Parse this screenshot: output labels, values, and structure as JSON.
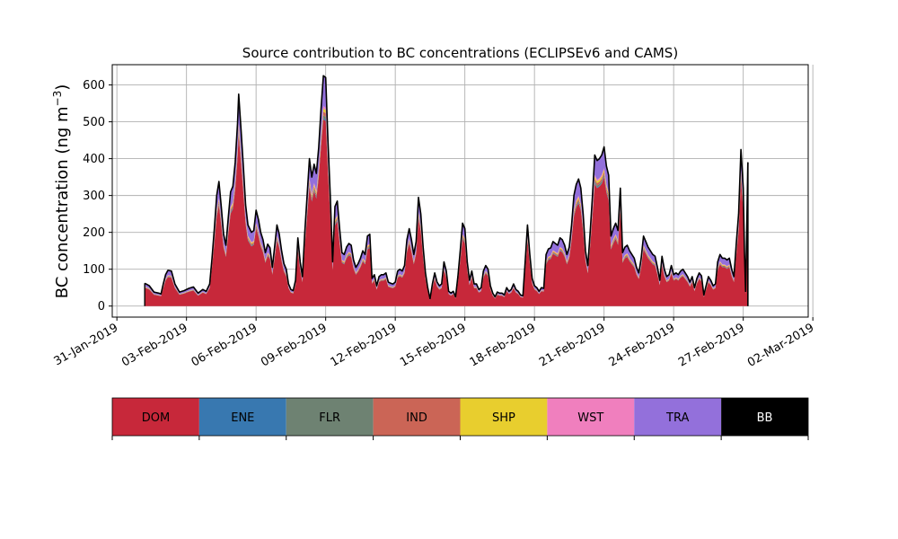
{
  "chart_data": {
    "type": "area",
    "stacked": true,
    "title": "Source contribution to BC concentrations (ECLIPSEv6 and CAMS)",
    "xlabel": "",
    "ylabel_main": "BC concentration (ng m",
    "ylabel_exp": "−3",
    "ylabel_close": ")",
    "ylim": [
      -30,
      655
    ],
    "yticks": [
      0,
      100,
      200,
      300,
      400,
      500,
      600
    ],
    "xlim_day": [
      -0.2,
      29.8
    ],
    "xticks": [
      {
        "day": 0,
        "label": "31-Jan-2019"
      },
      {
        "day": 3,
        "label": "03-Feb-2019"
      },
      {
        "day": 6,
        "label": "06-Feb-2019"
      },
      {
        "day": 9,
        "label": "09-Feb-2019"
      },
      {
        "day": 12,
        "label": "12-Feb-2019"
      },
      {
        "day": 15,
        "label": "15-Feb-2019"
      },
      {
        "day": 18,
        "label": "18-Feb-2019"
      },
      {
        "day": 21,
        "label": "21-Feb-2019"
      },
      {
        "day": 24,
        "label": "24-Feb-2019"
      },
      {
        "day": 27,
        "label": "27-Feb-2019"
      },
      {
        "day": 30,
        "label": "02-Mar-2019"
      }
    ],
    "grid": true,
    "total_keyframes": [
      [
        1.2,
        62
      ],
      [
        1.4,
        55
      ],
      [
        1.6,
        38
      ],
      [
        1.8,
        35
      ],
      [
        1.9,
        33
      ],
      [
        2.0,
        60
      ],
      [
        2.1,
        85
      ],
      [
        2.2,
        97
      ],
      [
        2.35,
        95
      ],
      [
        2.5,
        60
      ],
      [
        2.7,
        38
      ],
      [
        2.9,
        42
      ],
      [
        3.1,
        48
      ],
      [
        3.3,
        52
      ],
      [
        3.5,
        35
      ],
      [
        3.7,
        45
      ],
      [
        3.85,
        40
      ],
      [
        4.0,
        60
      ],
      [
        4.1,
        130
      ],
      [
        4.2,
        210
      ],
      [
        4.3,
        300
      ],
      [
        4.4,
        338
      ],
      [
        4.5,
        270
      ],
      [
        4.6,
        195
      ],
      [
        4.7,
        165
      ],
      [
        4.8,
        240
      ],
      [
        4.9,
        310
      ],
      [
        5.0,
        325
      ],
      [
        5.1,
        390
      ],
      [
        5.2,
        495
      ],
      [
        5.25,
        575
      ],
      [
        5.35,
        480
      ],
      [
        5.45,
        380
      ],
      [
        5.55,
        275
      ],
      [
        5.65,
        220
      ],
      [
        5.8,
        200
      ],
      [
        5.9,
        205
      ],
      [
        6.0,
        260
      ],
      [
        6.1,
        235
      ],
      [
        6.2,
        200
      ],
      [
        6.3,
        180
      ],
      [
        6.4,
        145
      ],
      [
        6.5,
        168
      ],
      [
        6.6,
        158
      ],
      [
        6.7,
        105
      ],
      [
        6.8,
        160
      ],
      [
        6.9,
        220
      ],
      [
        7.0,
        195
      ],
      [
        7.1,
        150
      ],
      [
        7.2,
        115
      ],
      [
        7.3,
        100
      ],
      [
        7.4,
        60
      ],
      [
        7.5,
        45
      ],
      [
        7.6,
        42
      ],
      [
        7.7,
        70
      ],
      [
        7.8,
        185
      ],
      [
        7.9,
        120
      ],
      [
        8.0,
        80
      ],
      [
        8.1,
        200
      ],
      [
        8.2,
        300
      ],
      [
        8.3,
        400
      ],
      [
        8.4,
        350
      ],
      [
        8.5,
        385
      ],
      [
        8.6,
        360
      ],
      [
        8.7,
        430
      ],
      [
        8.8,
        535
      ],
      [
        8.9,
        625
      ],
      [
        9.0,
        620
      ],
      [
        9.1,
        450
      ],
      [
        9.2,
        300
      ],
      [
        9.3,
        120
      ],
      [
        9.4,
        270
      ],
      [
        9.5,
        285
      ],
      [
        9.6,
        210
      ],
      [
        9.7,
        145
      ],
      [
        9.8,
        140
      ],
      [
        9.9,
        160
      ],
      [
        10.0,
        170
      ],
      [
        10.1,
        165
      ],
      [
        10.2,
        125
      ],
      [
        10.3,
        105
      ],
      [
        10.4,
        115
      ],
      [
        10.5,
        130
      ],
      [
        10.6,
        150
      ],
      [
        10.7,
        140
      ],
      [
        10.8,
        190
      ],
      [
        10.9,
        195
      ],
      [
        11.0,
        75
      ],
      [
        11.1,
        85
      ],
      [
        11.2,
        55
      ],
      [
        11.3,
        80
      ],
      [
        11.4,
        85
      ],
      [
        11.5,
        85
      ],
      [
        11.6,
        90
      ],
      [
        11.7,
        65
      ],
      [
        11.8,
        62
      ],
      [
        11.9,
        60
      ],
      [
        12.0,
        65
      ],
      [
        12.1,
        95
      ],
      [
        12.2,
        100
      ],
      [
        12.3,
        95
      ],
      [
        12.4,
        110
      ],
      [
        12.5,
        180
      ],
      [
        12.6,
        210
      ],
      [
        12.7,
        180
      ],
      [
        12.8,
        140
      ],
      [
        12.9,
        175
      ],
      [
        13.0,
        295
      ],
      [
        13.1,
        250
      ],
      [
        13.2,
        160
      ],
      [
        13.3,
        90
      ],
      [
        13.4,
        50
      ],
      [
        13.5,
        20
      ],
      [
        13.6,
        60
      ],
      [
        13.7,
        90
      ],
      [
        13.8,
        65
      ],
      [
        13.9,
        55
      ],
      [
        14.0,
        60
      ],
      [
        14.1,
        120
      ],
      [
        14.2,
        95
      ],
      [
        14.3,
        40
      ],
      [
        14.4,
        35
      ],
      [
        14.5,
        40
      ],
      [
        14.6,
        25
      ],
      [
        14.7,
        80
      ],
      [
        14.8,
        150
      ],
      [
        14.9,
        225
      ],
      [
        15.0,
        210
      ],
      [
        15.1,
        120
      ],
      [
        15.2,
        70
      ],
      [
        15.3,
        95
      ],
      [
        15.4,
        60
      ],
      [
        15.5,
        60
      ],
      [
        15.6,
        45
      ],
      [
        15.7,
        50
      ],
      [
        15.8,
        95
      ],
      [
        15.9,
        110
      ],
      [
        16.0,
        100
      ],
      [
        16.1,
        55
      ],
      [
        16.2,
        35
      ],
      [
        16.3,
        25
      ],
      [
        16.4,
        38
      ],
      [
        16.5,
        35
      ],
      [
        16.6,
        35
      ],
      [
        16.7,
        30
      ],
      [
        16.8,
        50
      ],
      [
        16.9,
        40
      ],
      [
        17.0,
        45
      ],
      [
        17.1,
        60
      ],
      [
        17.2,
        45
      ],
      [
        17.3,
        40
      ],
      [
        17.4,
        30
      ],
      [
        17.5,
        28
      ],
      [
        17.6,
        120
      ],
      [
        17.7,
        220
      ],
      [
        17.8,
        140
      ],
      [
        17.9,
        75
      ],
      [
        18.0,
        55
      ],
      [
        18.1,
        50
      ],
      [
        18.2,
        40
      ],
      [
        18.3,
        50
      ],
      [
        18.4,
        48
      ],
      [
        18.5,
        140
      ],
      [
        18.6,
        155
      ],
      [
        18.7,
        158
      ],
      [
        18.8,
        175
      ],
      [
        18.9,
        170
      ],
      [
        19.0,
        165
      ],
      [
        19.1,
        185
      ],
      [
        19.2,
        180
      ],
      [
        19.3,
        165
      ],
      [
        19.4,
        140
      ],
      [
        19.5,
        160
      ],
      [
        19.6,
        220
      ],
      [
        19.7,
        300
      ],
      [
        19.8,
        330
      ],
      [
        19.9,
        345
      ],
      [
        20.0,
        320
      ],
      [
        20.1,
        250
      ],
      [
        20.2,
        150
      ],
      [
        20.3,
        110
      ],
      [
        20.4,
        200
      ],
      [
        20.5,
        300
      ],
      [
        20.6,
        410
      ],
      [
        20.7,
        395
      ],
      [
        20.8,
        400
      ],
      [
        20.9,
        410
      ],
      [
        21.0,
        432
      ],
      [
        21.1,
        380
      ],
      [
        21.2,
        355
      ],
      [
        21.3,
        190
      ],
      [
        21.4,
        210
      ],
      [
        21.5,
        225
      ],
      [
        21.6,
        205
      ],
      [
        21.7,
        320
      ],
      [
        21.8,
        145
      ],
      [
        21.9,
        160
      ],
      [
        22.0,
        165
      ],
      [
        22.1,
        150
      ],
      [
        22.2,
        140
      ],
      [
        22.3,
        130
      ],
      [
        22.4,
        105
      ],
      [
        22.5,
        90
      ],
      [
        22.6,
        130
      ],
      [
        22.7,
        190
      ],
      [
        22.8,
        175
      ],
      [
        22.9,
        160
      ],
      [
        23.0,
        150
      ],
      [
        23.1,
        140
      ],
      [
        23.2,
        135
      ],
      [
        23.3,
        105
      ],
      [
        23.4,
        70
      ],
      [
        23.5,
        135
      ],
      [
        23.6,
        100
      ],
      [
        23.7,
        80
      ],
      [
        23.8,
        85
      ],
      [
        23.9,
        110
      ],
      [
        24.0,
        85
      ],
      [
        24.1,
        90
      ],
      [
        24.2,
        85
      ],
      [
        24.3,
        95
      ],
      [
        24.4,
        100
      ],
      [
        24.5,
        90
      ],
      [
        24.6,
        80
      ],
      [
        24.7,
        65
      ],
      [
        24.8,
        80
      ],
      [
        24.9,
        50
      ],
      [
        25.0,
        75
      ],
      [
        25.1,
        90
      ],
      [
        25.2,
        82
      ],
      [
        25.3,
        30
      ],
      [
        25.4,
        55
      ],
      [
        25.5,
        80
      ],
      [
        25.6,
        70
      ],
      [
        25.7,
        55
      ],
      [
        25.8,
        60
      ],
      [
        25.9,
        120
      ],
      [
        26.0,
        140
      ],
      [
        26.1,
        130
      ],
      [
        26.2,
        130
      ],
      [
        26.3,
        125
      ],
      [
        26.4,
        130
      ],
      [
        26.5,
        100
      ],
      [
        26.6,
        80
      ],
      [
        26.7,
        170
      ],
      [
        26.8,
        250
      ],
      [
        26.9,
        425
      ],
      [
        27.0,
        320
      ],
      [
        27.05,
        150
      ],
      [
        27.1,
        40
      ],
      [
        27.15,
        200
      ],
      [
        27.2,
        390
      ]
    ],
    "shares": {
      "DOM": 0.81,
      "ENE": 0.006,
      "FLR": 0.012,
      "IND": 0.016,
      "SHP": 0.014,
      "WST": 0.01,
      "TRA": 0.13,
      "BB": 0.002
    },
    "legend_position": "below",
    "series": [
      {
        "name": "DOM",
        "color": "#c7283a",
        "text_color": "#000000"
      },
      {
        "name": "ENE",
        "color": "#3878b0",
        "text_color": "#000000"
      },
      {
        "name": "FLR",
        "color": "#6e8272",
        "text_color": "#000000"
      },
      {
        "name": "IND",
        "color": "#cb6556",
        "text_color": "#000000"
      },
      {
        "name": "SHP",
        "color": "#e8ce2e",
        "text_color": "#000000"
      },
      {
        "name": "WST",
        "color": "#f07fbe",
        "text_color": "#000000"
      },
      {
        "name": "TRA",
        "color": "#9370db",
        "text_color": "#000000"
      },
      {
        "name": "BB",
        "color": "#000000",
        "text_color": "#ffffff"
      }
    ]
  }
}
